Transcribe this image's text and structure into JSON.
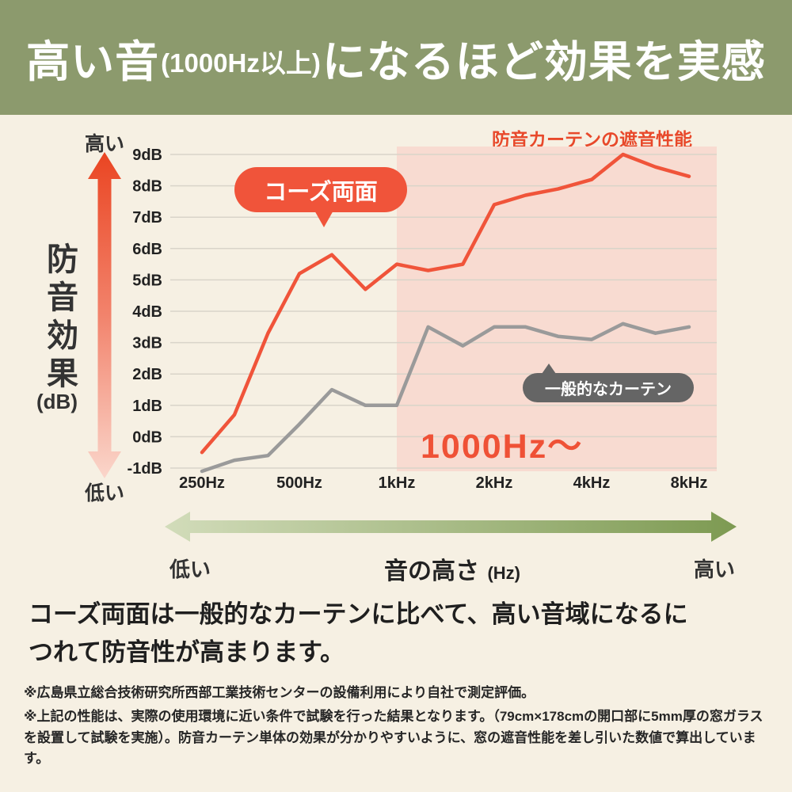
{
  "header": {
    "title_part1": "高い音",
    "title_part2": "(1000Hz以上)",
    "title_part3": "になるほど効果を実感"
  },
  "y_axis": {
    "label_vertical": "防音効果",
    "label_unit": "(dB)",
    "top_label": "高い",
    "bottom_label": "低い"
  },
  "x_axis": {
    "left_label": "低い",
    "center_label": "音の高さ",
    "center_unit": "(Hz)",
    "right_label": "高い"
  },
  "chart_data": {
    "type": "line",
    "title": "防音カーテンの遮音性能",
    "x_scale": "log",
    "x_range_hz": [
      250,
      8000
    ],
    "ylim": [
      -1,
      9
    ],
    "grid": true,
    "y_ticks": [
      {
        "value": 9,
        "label": "9dB"
      },
      {
        "value": 8,
        "label": "8dB"
      },
      {
        "value": 7,
        "label": "7dB"
      },
      {
        "value": 6,
        "label": "6dB"
      },
      {
        "value": 5,
        "label": "5dB"
      },
      {
        "value": 4,
        "label": "4dB"
      },
      {
        "value": 3,
        "label": "3dB"
      },
      {
        "value": 2,
        "label": "2dB"
      },
      {
        "value": 1,
        "label": "1dB"
      },
      {
        "value": 0,
        "label": "0dB"
      },
      {
        "value": -1,
        "label": "-1dB"
      }
    ],
    "x_ticks": [
      {
        "hz": 250,
        "label": "250Hz"
      },
      {
        "hz": 500,
        "label": "500Hz"
      },
      {
        "hz": 1000,
        "label": "1kHz"
      },
      {
        "hz": 2000,
        "label": "2kHz"
      },
      {
        "hz": 4000,
        "label": "4kHz"
      },
      {
        "hz": 8000,
        "label": "8kHz"
      }
    ],
    "frequencies_hz": [
      250,
      315,
      400,
      500,
      630,
      800,
      1000,
      1250,
      1600,
      2000,
      2500,
      3150,
      4000,
      5000,
      6300,
      8000
    ],
    "series": [
      {
        "name": "コーズ両面",
        "color": "#f0543a",
        "values": [
          -0.5,
          0.7,
          3.3,
          5.2,
          5.8,
          4.7,
          5.5,
          5.3,
          5.5,
          7.4,
          7.7,
          7.9,
          8.2,
          9.0,
          8.6,
          8.3
        ]
      },
      {
        "name": "一般的なカーテン",
        "color": "#9a9a9a",
        "values": [
          -1.1,
          -0.75,
          -0.6,
          0.4,
          1.5,
          1.0,
          1.0,
          3.5,
          2.9,
          3.5,
          3.5,
          3.2,
          3.1,
          3.6,
          3.3,
          3.5
        ]
      }
    ],
    "highlight": {
      "from_hz": 1000,
      "label": "1000Hz〜",
      "color": "#f8dbd1"
    },
    "gridline_color": "#d9d4c9",
    "legend_position": "callouts-on-chart"
  },
  "body": {
    "text": "コーズ両面は一般的なカーテンに比べて、高い音域になるに\nつれて防音性が高まります。"
  },
  "footnotes": [
    "※広島県立総合技術研究所西部工業技術センターの設備利用により自社で測定評価。",
    "※上記の性能は、実際の使用環境に近い条件で試験を行った結果となります。（79cm×178cmの開口部に5mm厚の窓ガラスを設置して試験を実施）。防音カーテン単体の効果が分かりやすいように、窓の遮音性能を差し引いた数値で算出しています。"
  ],
  "colors": {
    "header_bg": "#8c9a6d",
    "page_bg": "#f6f0e3",
    "accent_orange": "#f0543a",
    "chart_title_red": "#e8492b",
    "series_gray": "#9a9a9a",
    "highlight_pink": "#f8dbd1"
  }
}
